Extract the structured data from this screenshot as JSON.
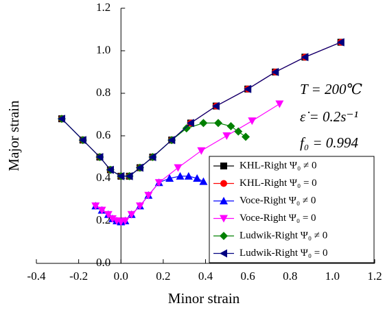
{
  "chart_data": {
    "type": "line",
    "x_label": "Minor strain",
    "y_label": "Major strain",
    "xlim": [
      -0.4,
      1.2
    ],
    "ylim": [
      0,
      1.2
    ],
    "xticks": [
      -0.4,
      -0.2,
      {
        "value": 0,
        "label": "0.0"
      },
      0.2,
      0.4,
      0.6,
      0.8,
      {
        "value": 1,
        "label": "1.0"
      },
      1.2
    ],
    "yticks": [
      {
        "value": 0,
        "label": "0.0"
      },
      0.2,
      0.4,
      0.6,
      0.8,
      {
        "value": 1,
        "label": "1.0"
      },
      1.2
    ],
    "annotations": [
      "T = 200℃",
      "ε̇ = 0.2s⁻¹",
      "f₀ = 0.994"
    ],
    "legend": "lower right",
    "series": [
      {
        "name": "KHL-Right Ψ₀ ≠ 0",
        "color": "#000000",
        "marker": "square",
        "x": [
          -0.28,
          -0.18,
          -0.1,
          -0.05,
          0,
          0.04,
          0.09,
          0.15,
          0.24,
          0.33,
          0.45,
          0.6,
          0.73,
          0.87,
          1.04
        ],
        "values": [
          0.68,
          0.58,
          0.5,
          0.44,
          0.41,
          0.41,
          0.45,
          0.5,
          0.58,
          0.66,
          0.74,
          0.82,
          0.9,
          0.97,
          1.04
        ]
      },
      {
        "name": "KHL-Right Ψ₀ = 0",
        "color": "#ff0000",
        "marker": "circle",
        "x": [
          -0.28,
          -0.18,
          -0.1,
          -0.05,
          0,
          0.04,
          0.09,
          0.15,
          0.24,
          0.33,
          0.45,
          0.6,
          0.73,
          0.87,
          1.04
        ],
        "values": [
          0.68,
          0.58,
          0.5,
          0.44,
          0.41,
          0.41,
          0.45,
          0.5,
          0.58,
          0.66,
          0.74,
          0.82,
          0.9,
          0.97,
          1.04
        ]
      },
      {
        "name": "Voce-Right Ψ₀ ≠ 0",
        "color": "#0000ff",
        "marker": "triangle-up",
        "x": [
          -0.12,
          -0.09,
          -0.06,
          -0.04,
          -0.02,
          0,
          0.02,
          0.05,
          0.09,
          0.13,
          0.18,
          0.23,
          0.28,
          0.32,
          0.36,
          0.39
        ],
        "values": [
          0.27,
          0.25,
          0.23,
          0.21,
          0.2,
          0.195,
          0.2,
          0.23,
          0.27,
          0.32,
          0.38,
          0.4,
          0.41,
          0.41,
          0.4,
          0.385
        ]
      },
      {
        "name": "Voce-Right Ψ₀ = 0",
        "color": "#ff00ff",
        "marker": "triangle-down",
        "x": [
          -0.12,
          -0.09,
          -0.06,
          -0.04,
          -0.02,
          0,
          0.02,
          0.05,
          0.09,
          0.13,
          0.18,
          0.27,
          0.38,
          0.5,
          0.62,
          0.75
        ],
        "values": [
          0.27,
          0.25,
          0.23,
          0.21,
          0.2,
          0.195,
          0.2,
          0.23,
          0.27,
          0.32,
          0.38,
          0.45,
          0.53,
          0.6,
          0.67,
          0.75
        ]
      },
      {
        "name": "Ludwik-Right Ψ₀ ≠ 0",
        "color": "#008000",
        "marker": "diamond",
        "x": [
          -0.28,
          -0.18,
          -0.1,
          -0.05,
          0,
          0.04,
          0.09,
          0.15,
          0.24,
          0.31,
          0.39,
          0.46,
          0.52,
          0.555,
          0.59
        ],
        "values": [
          0.68,
          0.58,
          0.5,
          0.44,
          0.41,
          0.41,
          0.45,
          0.5,
          0.58,
          0.635,
          0.66,
          0.66,
          0.645,
          0.62,
          0.595
        ]
      },
      {
        "name": "Ludwik-Right Ψ₀ = 0",
        "color": "#000080",
        "marker": "triangle-left",
        "x": [
          -0.28,
          -0.18,
          -0.1,
          -0.05,
          0,
          0.04,
          0.09,
          0.15,
          0.24,
          0.33,
          0.45,
          0.6,
          0.73,
          0.87,
          1.04
        ],
        "values": [
          0.68,
          0.58,
          0.5,
          0.44,
          0.41,
          0.41,
          0.45,
          0.5,
          0.58,
          0.66,
          0.74,
          0.82,
          0.9,
          0.97,
          1.04
        ]
      }
    ]
  }
}
